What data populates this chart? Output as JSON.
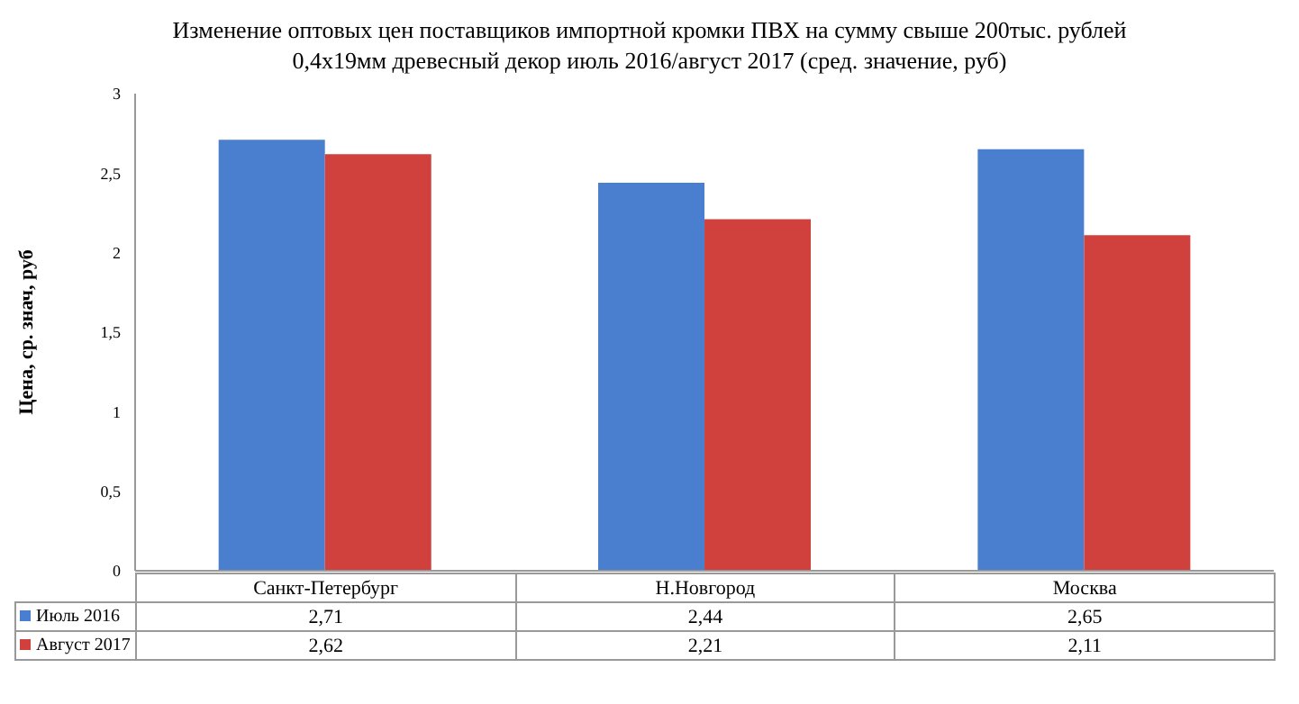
{
  "chart_data": {
    "type": "bar",
    "title": "Изменение оптовых цен поставщиков импортной кромки ПВХ на сумму свыше 200тыс. рублей\n0,4х19мм древесный декор  июль 2016/август 2017 (сред. значение, руб)",
    "ylabel": "Цена, ср. знач, руб",
    "categories": [
      "Санкт-Петербург",
      "Н.Новгород",
      "Москва"
    ],
    "series": [
      {
        "name": "Июль 2016",
        "color": "#4a7fcf",
        "values": [
          2.71,
          2.44,
          2.65
        ],
        "value_labels": [
          "2,71",
          "2,44",
          "2,65"
        ]
      },
      {
        "name": "Август 2017",
        "color": "#d0413d",
        "values": [
          2.62,
          2.21,
          2.11
        ],
        "value_labels": [
          "2,62",
          "2,21",
          "2,11"
        ]
      }
    ],
    "ylim": [
      0,
      3
    ],
    "yticks": [
      0,
      {
        "value": 0.5,
        "label": "0,5"
      },
      1,
      {
        "value": 1.5,
        "label": "1,5"
      },
      2,
      {
        "value": 2.5,
        "label": "2,5"
      },
      3
    ],
    "legend": "bottom left"
  }
}
